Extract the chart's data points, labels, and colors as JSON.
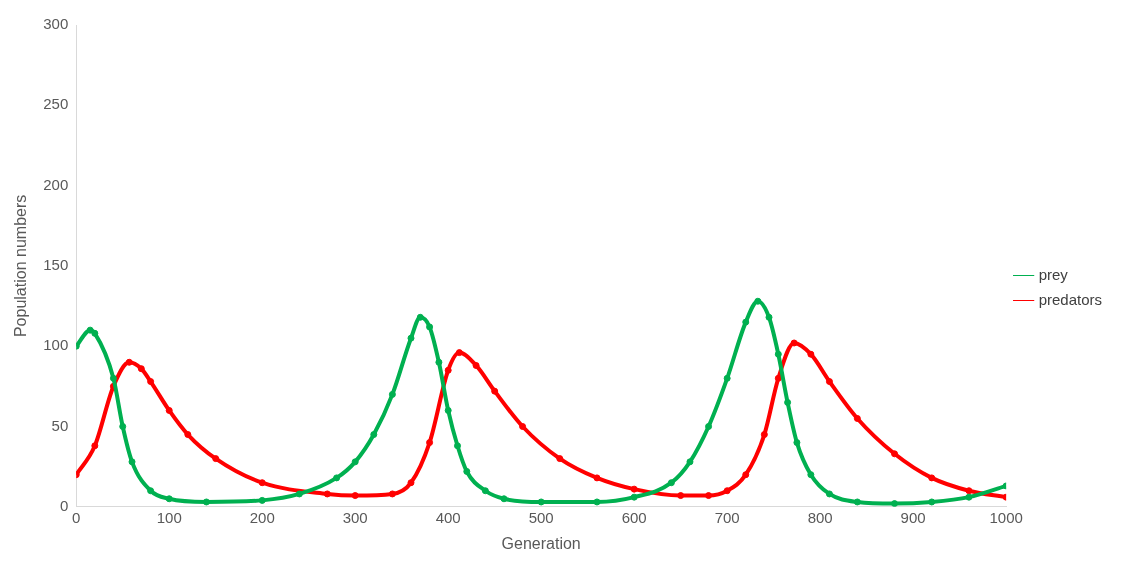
{
  "chart_data": {
    "type": "line",
    "xlabel": "Generation",
    "ylabel": "Population numbers",
    "xlim": [
      0,
      1000
    ],
    "xticks": [
      0,
      100,
      200,
      300,
      400,
      500,
      600,
      700,
      800,
      900,
      1000
    ],
    "ylim": [
      0,
      300
    ],
    "yticks": [
      0,
      50,
      100,
      150,
      200,
      250,
      300
    ],
    "grid": false,
    "legend": "right",
    "marker": "circle",
    "series": [
      {
        "name": "prey",
        "color": "#00b050",
        "x": [
          0,
          15,
          20,
          40,
          50,
          60,
          80,
          100,
          140,
          200,
          240,
          280,
          300,
          320,
          340,
          360,
          370,
          380,
          390,
          400,
          410,
          420,
          440,
          460,
          500,
          560,
          600,
          640,
          660,
          680,
          700,
          720,
          733,
          745,
          755,
          765,
          775,
          790,
          810,
          840,
          880,
          920,
          960,
          1000
        ],
        "values": [
          100,
          110,
          108,
          80,
          50,
          28,
          10,
          5,
          3,
          4,
          8,
          18,
          28,
          45,
          70,
          105,
          118,
          112,
          90,
          60,
          38,
          22,
          10,
          5,
          3,
          3,
          6,
          15,
          28,
          50,
          80,
          115,
          128,
          118,
          95,
          65,
          40,
          20,
          8,
          3,
          2,
          3,
          6,
          13
        ]
      },
      {
        "name": "predators",
        "color": "#ff0000",
        "x": [
          0,
          20,
          40,
          57,
          70,
          80,
          100,
          120,
          150,
          200,
          270,
          300,
          340,
          360,
          380,
          400,
          412,
          430,
          450,
          480,
          520,
          560,
          600,
          650,
          680,
          700,
          720,
          740,
          755,
          772,
          790,
          810,
          840,
          880,
          920,
          960,
          1000
        ],
        "values": [
          20,
          38,
          75,
          90,
          86,
          78,
          60,
          45,
          30,
          15,
          8,
          7,
          8,
          15,
          40,
          85,
          96,
          88,
          72,
          50,
          30,
          18,
          11,
          7,
          7,
          10,
          20,
          45,
          80,
          102,
          95,
          78,
          55,
          33,
          18,
          10,
          6
        ]
      }
    ]
  }
}
